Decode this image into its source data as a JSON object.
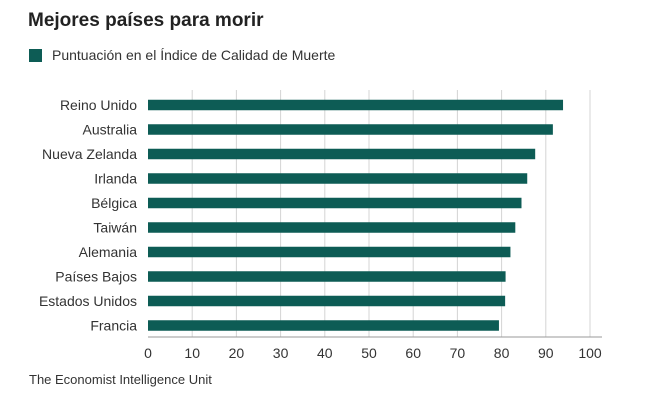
{
  "colors": {
    "bar": "#0d5c55",
    "grid": "#d4d4d4",
    "axis": "#999999",
    "text": "#333333"
  },
  "chart_data": {
    "type": "bar",
    "orientation": "horizontal",
    "title": "Mejores países para morir",
    "legend": [
      "Puntuación en el Índice de Calidad de Muerte"
    ],
    "legend_position": "top-left",
    "categories": [
      "Reino Unido",
      "Australia",
      "Nueva Zelanda",
      "Irlanda",
      "Bélgica",
      "Taiwán",
      "Alemania",
      "Países Bajos",
      "Estados Unidos",
      "Francia"
    ],
    "series": [
      {
        "name": "Puntuación en el Índice de Calidad de Muerte",
        "values": [
          93.9,
          91.6,
          87.6,
          85.8,
          84.5,
          83.1,
          82.0,
          80.9,
          80.8,
          79.4
        ]
      }
    ],
    "xlim": [
      0,
      100
    ],
    "xticks": [
      0,
      10,
      20,
      30,
      40,
      50,
      60,
      70,
      80,
      90,
      100
    ],
    "xlabel": "",
    "ylabel": "",
    "grid": true,
    "source": "The Economist Intelligence Unit"
  }
}
